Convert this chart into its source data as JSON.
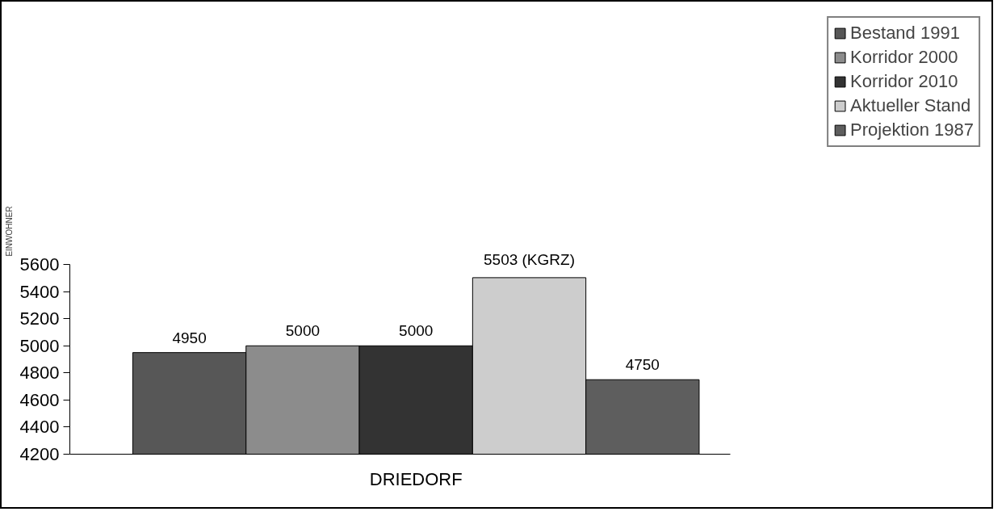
{
  "chart_data": {
    "type": "bar",
    "ylabel": "EINWOHNER",
    "categories": [
      "DRIEDORF"
    ],
    "series": [
      {
        "name": "Bestand 1991",
        "color": "#575757",
        "values": [
          4950
        ],
        "value_labels": [
          "4950"
        ]
      },
      {
        "name": "Korridor 2000",
        "color": "#8c8c8c",
        "values": [
          5000
        ],
        "value_labels": [
          "5000"
        ]
      },
      {
        "name": "Korridor 2010",
        "color": "#333333",
        "values": [
          5000
        ],
        "value_labels": [
          "5000"
        ]
      },
      {
        "name": "Aktueller Stand",
        "color": "#cdcdcd",
        "values": [
          5503
        ],
        "value_labels": [
          "5503 (KGRZ)"
        ]
      },
      {
        "name": "Projektion 1987",
        "color": "#5e5e5e",
        "values": [
          4750
        ],
        "value_labels": [
          "4750"
        ]
      }
    ],
    "ylim": [
      4200,
      5600
    ],
    "yticks": [
      4200,
      4400,
      4600,
      4800,
      5000,
      5200,
      5400,
      5600
    ],
    "grid": false,
    "legend": "top right"
  }
}
